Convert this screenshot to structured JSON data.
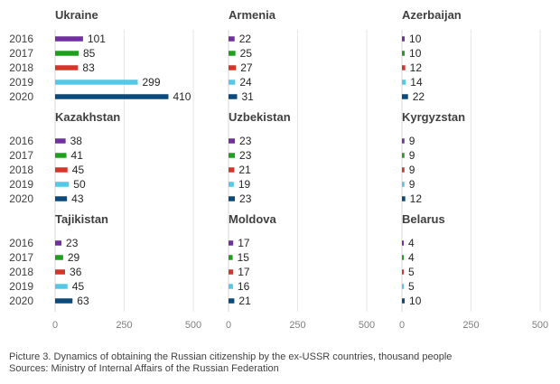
{
  "caption": {
    "line1": "Picture 3. Dynamics of obtaining the Russian citizenship by the ex-USSR countries, thousand people",
    "line2": "Sources: Ministry of Internal Affairs of the Russian Federation"
  },
  "chart_data": {
    "type": "bar",
    "orientation": "horizontal",
    "xlim": [
      0,
      500
    ],
    "xticks": [
      "0",
      "250",
      "500"
    ],
    "years": [
      "2016",
      "2017",
      "2018",
      "2019",
      "2020"
    ],
    "colors": [
      "#7030a0",
      "#1ea01e",
      "#d8352a",
      "#55c8e6",
      "#0b4a7d"
    ],
    "grid": true,
    "panels": [
      {
        "title": "Ukraine",
        "values": [
          101,
          85,
          83,
          299,
          410
        ]
      },
      {
        "title": "Armenia",
        "values": [
          22,
          25,
          27,
          24,
          31
        ]
      },
      {
        "title": "Azerbaijan",
        "values": [
          10,
          10,
          12,
          14,
          22
        ]
      },
      {
        "title": "Kazakhstan",
        "values": [
          38,
          41,
          45,
          50,
          43
        ]
      },
      {
        "title": "Uzbekistan",
        "values": [
          23,
          23,
          21,
          19,
          23
        ]
      },
      {
        "title": "Kyrgyzstan",
        "values": [
          9,
          9,
          9,
          9,
          12
        ]
      },
      {
        "title": "Tajikistan",
        "values": [
          23,
          29,
          36,
          45,
          63
        ]
      },
      {
        "title": "Moldova",
        "values": [
          17,
          15,
          17,
          16,
          21
        ]
      },
      {
        "title": "Belarus",
        "values": [
          4,
          4,
          5,
          5,
          10
        ]
      }
    ]
  }
}
